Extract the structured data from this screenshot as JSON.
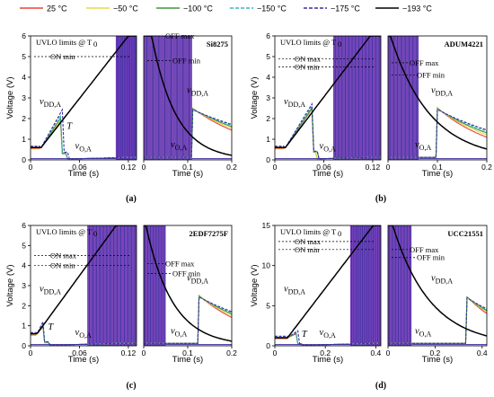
{
  "legend": {
    "items": [
      {
        "label": "25 °C",
        "color": "#e8433f",
        "dash": "solid"
      },
      {
        "label": "−50 °C",
        "color": "#e8d84a",
        "dash": "solid"
      },
      {
        "label": "−100 °C",
        "color": "#3a9a3c",
        "dash": "solid"
      },
      {
        "label": "−150 °C",
        "color": "#3fb2c2",
        "dash": "dashed"
      },
      {
        "label": "−175 °C",
        "color": "#3d2fa1",
        "dash": "dashed"
      },
      {
        "label": "−193 °C",
        "color": "#000000",
        "dash": "solid"
      }
    ]
  },
  "chart_data": [
    {
      "type": "line",
      "panel": "(a)",
      "device": "Si8275",
      "ylabel": "Voltage (V)",
      "xlabel": "Time (s)",
      "ylim": [
        0,
        6
      ],
      "yticks": [
        0,
        1,
        2,
        3,
        4,
        5,
        6
      ],
      "left": {
        "xlim": [
          0,
          0.13
        ],
        "xticks": [
          "0",
          "0.06",
          "0.12"
        ],
        "xvals": [
          0,
          0.06,
          0.12
        ]
      },
      "right": {
        "xlim": [
          0,
          0.2
        ],
        "xticks": [
          "0",
          "0.1",
          "0.2"
        ],
        "xvals": [
          0,
          0.1,
          0.2
        ]
      },
      "on_max": null,
      "on_min": 5.0,
      "off_max": 6.0,
      "off_min": 4.8,
      "vmax": 6.0,
      "labels": {
        "uvlo": "UVLO limits @ T",
        "uvlo_sub": "0",
        "on_max": "",
        "on_min": "ON min",
        "off_max": "OFF max",
        "off_min": "OFF min",
        "vdd": "v",
        "vdd_sub": "DD,A",
        "vo": "v",
        "vo_sub": "O,A",
        "t": "T"
      },
      "ramp": {
        "t_start": 0.013,
        "t_end": 0.12,
        "v0": 0.6
      },
      "bumps": [
        {
          "color": "#e8433f",
          "peak": 1.9,
          "t_peak": 0.038
        },
        {
          "color": "#e8d84a",
          "peak": 2.0,
          "t_peak": 0.038
        },
        {
          "color": "#3a9a3c",
          "peak": 2.15,
          "t_peak": 0.039
        },
        {
          "color": "#3fb2c2",
          "peak": 2.3,
          "t_peak": 0.039
        },
        {
          "color": "#3d2fa1",
          "peak": 2.5,
          "t_peak": 0.04
        }
      ],
      "output_on": 0.105,
      "decay": {
        "off_time": 0.018,
        "tau": 0.055,
        "tail_off": 0.11,
        "tail_tau": 0.16
      },
      "output_off": 0.11,
      "caption": "(a)"
    },
    {
      "type": "line",
      "panel": "(b)",
      "device": "ADUM4221",
      "ylabel": "Voltage (V)",
      "xlabel": "Time (s)",
      "ylim": [
        0,
        6
      ],
      "yticks": [
        0,
        1,
        2,
        3,
        4,
        5,
        6
      ],
      "left": {
        "xlim": [
          0,
          0.13
        ],
        "xticks": [
          "0",
          "0.06",
          "0.12"
        ],
        "xvals": [
          0,
          0.06,
          0.12
        ]
      },
      "right": {
        "xlim": [
          0,
          0.2
        ],
        "xticks": [
          "0",
          "0.1",
          "0.2"
        ],
        "xvals": [
          0,
          0.1,
          0.2
        ]
      },
      "on_max": 4.9,
      "on_min": 4.5,
      "off_max": 4.7,
      "off_min": 4.1,
      "vmax": 6.0,
      "labels": {
        "uvlo": "UVLO limits @ T",
        "uvlo_sub": "0",
        "on_max": "ON max",
        "on_min": "ON min",
        "off_max": "OFF max",
        "off_min": "OFF min",
        "vdd": "v",
        "vdd_sub": "DD,A",
        "vo": "v",
        "vo_sub": "O,A",
        "t": ""
      },
      "ramp": {
        "t_start": 0.013,
        "t_end": 0.117,
        "v0": 0.6
      },
      "bumps": [
        {
          "color": "#e8433f",
          "peak": 2.5,
          "t_peak": 0.046
        },
        {
          "color": "#e8d84a",
          "peak": 2.55,
          "t_peak": 0.046
        },
        {
          "color": "#3a9a3c",
          "peak": 2.6,
          "t_peak": 0.047
        },
        {
          "color": "#3fb2c2",
          "peak": 2.7,
          "t_peak": 0.047
        },
        {
          "color": "#3d2fa1",
          "peak": 2.8,
          "t_peak": 0.047
        }
      ],
      "output_on": 0.072,
      "decay": {
        "off_time": 0.005,
        "tau": 0.08,
        "tail_off": 0.1,
        "tail_tau": 0.12
      },
      "output_off": 0.062,
      "caption": "(b)"
    },
    {
      "type": "line",
      "panel": "(c)",
      "device": "2EDF7275F",
      "ylabel": "Voltage (V)",
      "xlabel": "Time (s)",
      "ylim": [
        0,
        6
      ],
      "yticks": [
        0,
        1,
        2,
        3,
        4,
        5,
        6
      ],
      "left": {
        "xlim": [
          0,
          0.13
        ],
        "xticks": [
          "0",
          "0.06",
          "0.12"
        ],
        "xvals": [
          0,
          0.06,
          0.12
        ]
      },
      "right": {
        "xlim": [
          0,
          0.2
        ],
        "xticks": [
          "0",
          "0.1",
          "0.2"
        ],
        "xvals": [
          0,
          0.1,
          0.2
        ]
      },
      "on_max": 4.5,
      "on_min": 4.0,
      "off_max": 4.1,
      "off_min": 3.6,
      "vmax": 6.0,
      "labels": {
        "uvlo": "UVLO limits @ T",
        "uvlo_sub": "0",
        "on_max": "ON max",
        "on_min": "ON min",
        "off_max": "OFF max",
        "off_min": "OFF min",
        "vdd": "v",
        "vdd_sub": "DD,A",
        "vo": "v",
        "vo_sub": "O,A",
        "t": "T"
      },
      "ramp": {
        "t_start": 0.008,
        "t_end": 0.105,
        "v0": 0.6
      },
      "bumps": [
        {
          "color": "#e8433f",
          "peak": 1.0,
          "t_peak": 0.016
        },
        {
          "color": "#e8d84a",
          "peak": 1.1,
          "t_peak": 0.016
        },
        {
          "color": "#3a9a3c",
          "peak": 1.15,
          "t_peak": 0.017
        },
        {
          "color": "#3fb2c2",
          "peak": 1.25,
          "t_peak": 0.017
        },
        {
          "color": "#3d2fa1",
          "peak": 1.35,
          "t_peak": 0.017
        }
      ],
      "output_on": 0.07,
      "decay": {
        "off_time": 0.005,
        "tau": 0.06,
        "tail_off": 0.125,
        "tail_tau": 0.13
      },
      "output_off": 0.05,
      "caption": "(c)"
    },
    {
      "type": "line",
      "panel": "(d)",
      "device": "UCC21551",
      "ylabel": "Voltage (V)",
      "xlabel": "Time (s)",
      "ylim": [
        0,
        15
      ],
      "yticks": [
        0,
        5,
        10,
        15
      ],
      "left": {
        "xlim": [
          0,
          0.42
        ],
        "xticks": [
          "0",
          "0.2",
          "0.4"
        ],
        "xvals": [
          0,
          0.2,
          0.4
        ]
      },
      "right": {
        "xlim": [
          0,
          0.42
        ],
        "xticks": [
          "0",
          "0.2",
          "0.4"
        ],
        "xvals": [
          0,
          0.2,
          0.4
        ]
      },
      "on_max": 13.0,
      "on_min": 12.0,
      "off_max": 12.0,
      "off_min": 11.0,
      "vmax": 15.0,
      "labels": {
        "uvlo": "UVLO limits @ T",
        "uvlo_sub": "0",
        "on_max": "ON max",
        "on_min": "ON min",
        "off_max": "OFF max",
        "off_min": "OFF min",
        "vdd": "v",
        "vdd_sub": "DD,A",
        "vo": "v",
        "vo_sub": "O,A",
        "t": "T"
      },
      "ramp": {
        "t_start": 0.05,
        "t_end": 0.39,
        "v0": 1.0
      },
      "bumps": [
        {
          "color": "#e8433f",
          "peak": 1.5,
          "t_peak": 0.085
        },
        {
          "color": "#e8d84a",
          "peak": 1.6,
          "t_peak": 0.085
        },
        {
          "color": "#3a9a3c",
          "peak": 1.7,
          "t_peak": 0.09
        },
        {
          "color": "#3fb2c2",
          "peak": 1.8,
          "t_peak": 0.09
        },
        {
          "color": "#3d2fa1",
          "peak": 1.9,
          "t_peak": 0.092
        }
      ],
      "output_on": 0.3,
      "decay": {
        "off_time": 0.02,
        "tau": 0.16,
        "tail_off": 0.33,
        "tail_tau": 0.2
      },
      "output_off": 0.1,
      "caption": "(d)"
    }
  ]
}
